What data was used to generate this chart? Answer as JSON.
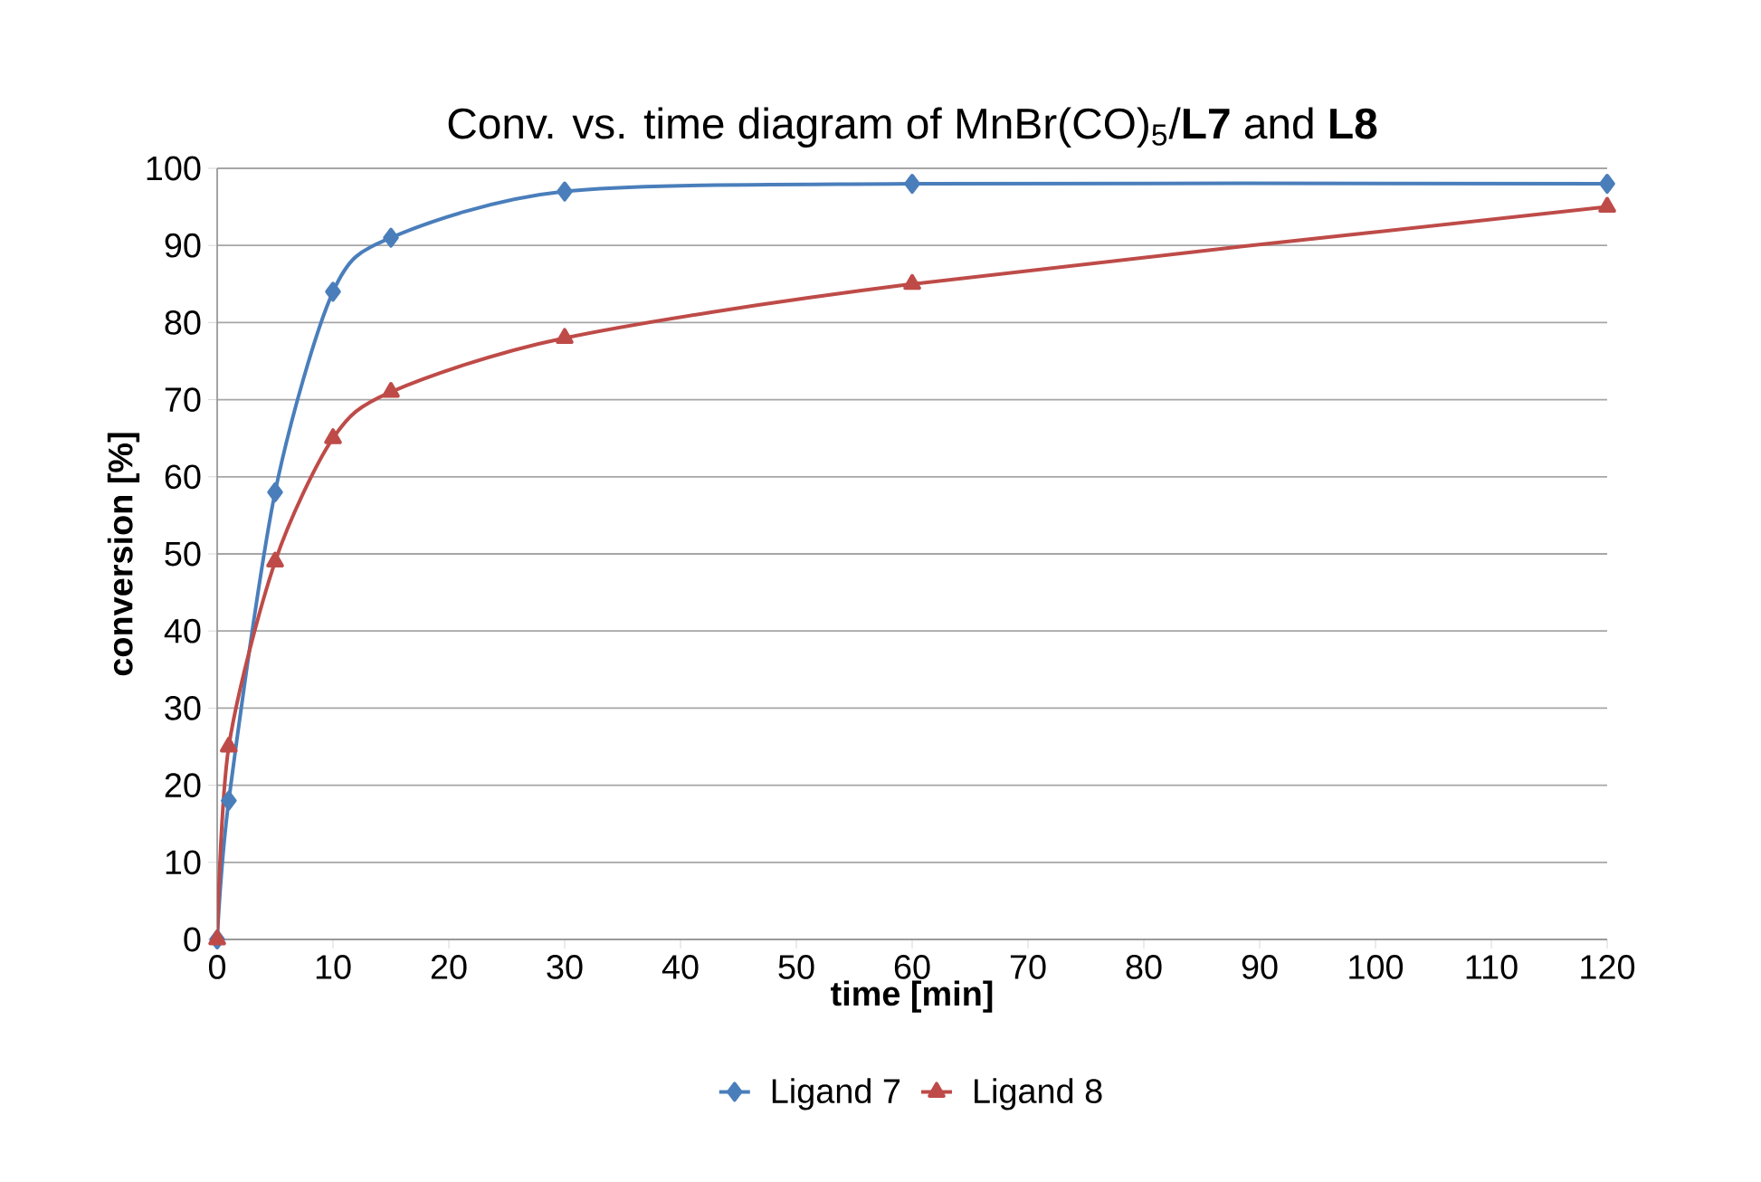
{
  "chart_data": {
    "type": "line",
    "title": "Conv. vs. time diagram of MnBr(CO)$_{5}$/**L7** and **L8**",
    "xlabel": "time [min]",
    "ylabel": "conversion [%]",
    "x": [
      0,
      1,
      5,
      10,
      15,
      30,
      60,
      120
    ],
    "series": [
      {
        "name": "Ligand 7",
        "color": "#4a7ebb",
        "marker": "diamond",
        "values": [
          0,
          18,
          58,
          84,
          91,
          97,
          98,
          98
        ]
      },
      {
        "name": "Ligand 8",
        "color": "#be4b48",
        "marker": "triangle",
        "values": [
          0,
          25,
          49,
          65,
          71,
          78,
          85,
          95
        ]
      }
    ],
    "xlim": [
      0,
      120
    ],
    "xticks": [
      0,
      10,
      20,
      30,
      40,
      50,
      60,
      70,
      80,
      90,
      100,
      110,
      120
    ],
    "ylim": [
      0,
      100
    ],
    "yticks": [
      0,
      10,
      20,
      30,
      40,
      50,
      60,
      70,
      80,
      90,
      100
    ],
    "grid": "y",
    "legend": "bottom",
    "line_style": "solid"
  }
}
